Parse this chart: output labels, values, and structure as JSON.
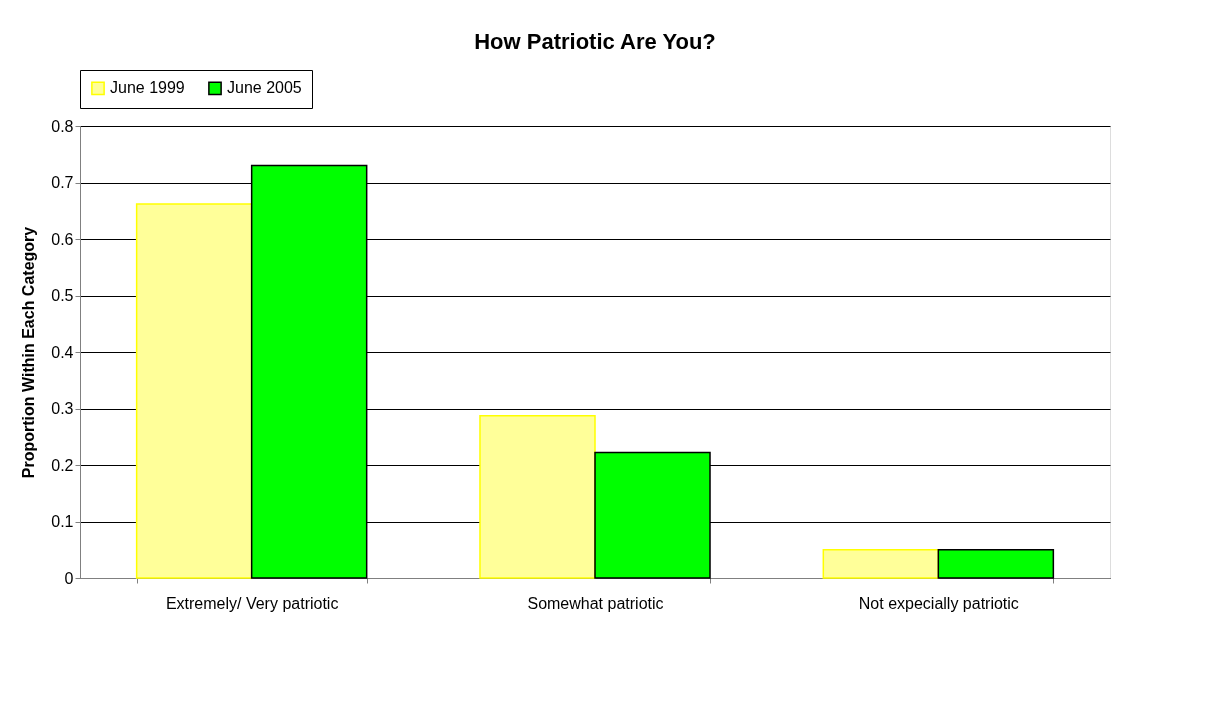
{
  "chart_data": {
    "type": "bar",
    "title": "How Patriotic Are You?",
    "ylabel": "Proportion Within Each Category",
    "categories": [
      "Extremely/ Very patriotic",
      "Somewhat patriotic",
      "Not expecially patriotic"
    ],
    "series": [
      {
        "name": "June 1999",
        "color": "#ffff99",
        "values": [
          0.662,
          0.287,
          0.05
        ]
      },
      {
        "name": "June 2005",
        "color": "#00ff00",
        "values": [
          0.73,
          0.222,
          0.05
        ]
      }
    ],
    "ylim": [
      0,
      0.8
    ],
    "yticks": [
      0,
      0.1,
      0.2,
      0.3,
      0.4,
      0.5,
      0.6,
      0.7,
      0.8
    ],
    "grid": "y",
    "legend": "top"
  }
}
